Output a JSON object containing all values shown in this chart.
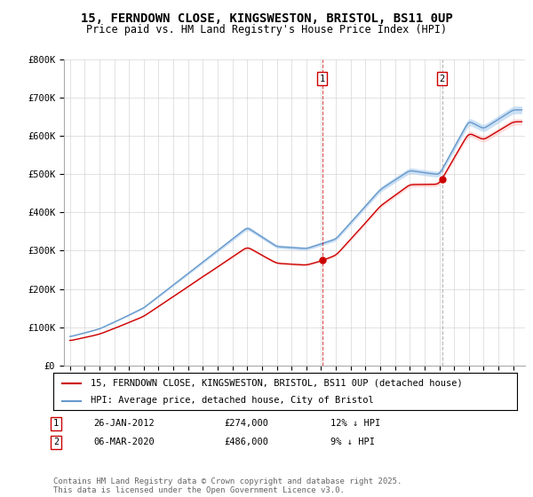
{
  "title": "15, FERNDOWN CLOSE, KINGSWESTON, BRISTOL, BS11 0UP",
  "subtitle": "Price paid vs. HM Land Registry's House Price Index (HPI)",
  "ylabel_ticks": [
    "£0",
    "£100K",
    "£200K",
    "£300K",
    "£400K",
    "£500K",
    "£600K",
    "£700K",
    "£800K"
  ],
  "ytick_values": [
    0,
    100000,
    200000,
    300000,
    400000,
    500000,
    600000,
    700000,
    800000
  ],
  "ylim": [
    0,
    800000
  ],
  "xlim_start": 1994.6,
  "xlim_end": 2025.8,
  "marker1": {
    "label": "1",
    "date": "26-JAN-2012",
    "price": "274,000",
    "x": 2012.07,
    "hpi_note": "12% ↓ HPI"
  },
  "marker2": {
    "label": "2",
    "date": "06-MAR-2020",
    "price": "486,000",
    "x": 2020.18,
    "hpi_note": "9% ↓ HPI"
  },
  "legend_line1": "15, FERNDOWN CLOSE, KINGSWESTON, BRISTOL, BS11 0UP (detached house)",
  "legend_line2": "HPI: Average price, detached house, City of Bristol",
  "footnote": "Contains HM Land Registry data © Crown copyright and database right 2025.\nThis data is licensed under the Open Government Licence v3.0.",
  "line_color_actual": "#cc0000",
  "line_color_hpi": "#6699cc",
  "hpi_fill_color": "#aaccee",
  "background_color": "#ffffff",
  "grid_color": "#cccccc",
  "title_fontsize": 10,
  "subtitle_fontsize": 8.5,
  "tick_fontsize": 7.5,
  "legend_fontsize": 7.5,
  "footnote_fontsize": 6.5,
  "marker1_dot_y": 274000,
  "marker2_dot_y": 486000
}
